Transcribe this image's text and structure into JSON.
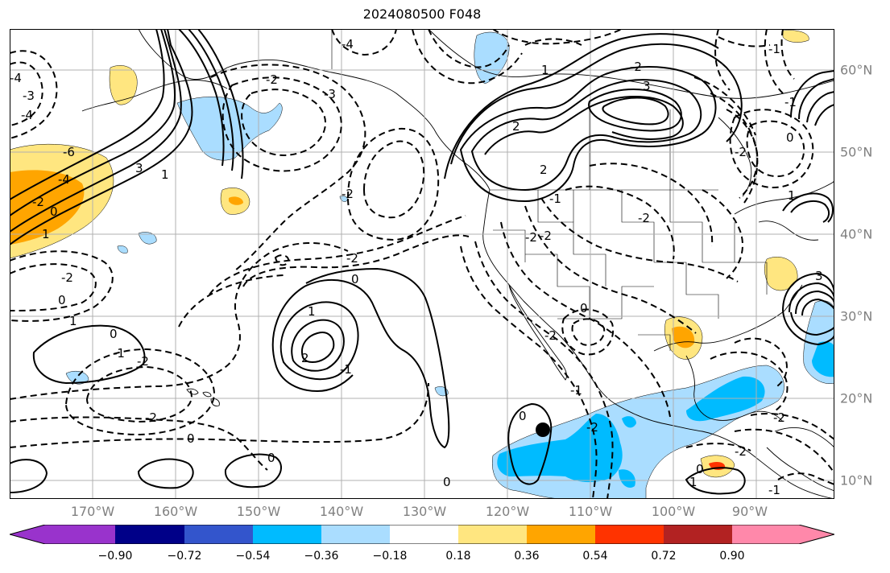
{
  "title": "2024080500 F048",
  "lon_labels": [
    "170°W",
    "160°W",
    "150°W",
    "140°W",
    "130°W",
    "120°W",
    "110°W",
    "100°W",
    "90°W"
  ],
  "lat_labels": [
    "60°N",
    "50°N",
    "40°N",
    "30°N",
    "20°N",
    "10°N"
  ],
  "colorbar": {
    "colors": [
      "#9933cc",
      "#000088",
      "#3355cc",
      "#00bbff",
      "#aaddff",
      "#ffffff",
      "#ffe680",
      "#ffa500",
      "#ff3300",
      "#b22222",
      "#ff88aa"
    ],
    "tick_labels": [
      "−0.90",
      "−0.72",
      "−0.54",
      "−0.36",
      "−0.18",
      "0.18",
      "0.36",
      "0.54",
      "0.72",
      "0.90"
    ]
  },
  "contour_labels": [
    "-4",
    "-3",
    "-4",
    "-6",
    "-4",
    "-2",
    "0",
    "1",
    "3",
    "1",
    "-4",
    "-3",
    "-2",
    "-2",
    "-2",
    "0",
    "0",
    "1",
    "2",
    "1",
    "0",
    "-2",
    "-1",
    "-1",
    "-2",
    "-2",
    "0",
    "0",
    "1",
    "2",
    "-2",
    "3",
    "2",
    "-2",
    "-2",
    "-2",
    "0",
    "-1",
    "-1",
    "0",
    "-2",
    "-2",
    "-1",
    "0",
    "-1",
    "-2",
    "0",
    "-2",
    "0",
    "1",
    "-1",
    "3",
    "1",
    "-2"
  ],
  "colors": {
    "positive_fill_1": "#ffe680",
    "positive_fill_2": "#ffa500",
    "negative_fill_1": "#aaddff",
    "negative_fill_2": "#00bbff",
    "marker": "#000000"
  }
}
